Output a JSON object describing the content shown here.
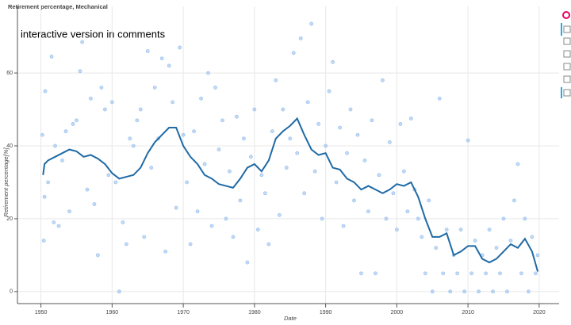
{
  "chart_data": {
    "type": "scatter",
    "title": "Retirement percentage, Mechanical",
    "annotation": "interactive version in comments",
    "x_label": "Date",
    "y_label": "Retirement percentage[%]",
    "xlim": [
      1946.7,
      2022.8
    ],
    "ylim": [
      -3.3,
      78.3
    ],
    "xticks": [
      1950,
      1960,
      1970,
      1980,
      1990,
      2000,
      2010,
      2020
    ],
    "yticks": [
      0,
      20,
      40,
      60
    ],
    "grid": true,
    "points": {
      "color": "#9ec3ee",
      "x": [
        1950.2,
        1950.4,
        1950.5,
        1950.6,
        1951,
        1951.5,
        1951.8,
        1952,
        1952.5,
        1953,
        1953.5,
        1954,
        1954.5,
        1955,
        1955.5,
        1955.8,
        1956.5,
        1957,
        1957.5,
        1958,
        1958.5,
        1959,
        1959.5,
        1960,
        1960.5,
        1961,
        1961.5,
        1962,
        1962.5,
        1963,
        1963.5,
        1964,
        1964.5,
        1965,
        1965.5,
        1966,
        1966.5,
        1967,
        1967.5,
        1968,
        1968.5,
        1969,
        1969.5,
        1970,
        1970.5,
        1971,
        1971.5,
        1972,
        1972.5,
        1973,
        1973.5,
        1974,
        1974.5,
        1975,
        1975.5,
        1976,
        1976.5,
        1977,
        1977.5,
        1978,
        1978.5,
        1979,
        1979.5,
        1980,
        1980.5,
        1981,
        1981.5,
        1982,
        1982.5,
        1983,
        1983.5,
        1984,
        1984.5,
        1985,
        1985.5,
        1986,
        1986.5,
        1987,
        1987.5,
        1988,
        1988.5,
        1989,
        1989.5,
        1990,
        1990.5,
        1991,
        1991.5,
        1992,
        1992.5,
        1993,
        1993.5,
        1994,
        1994.5,
        1995,
        1995.5,
        1996,
        1996.5,
        1997,
        1997.5,
        1998,
        1998.5,
        1999,
        1999.5,
        2000,
        2000.5,
        2001,
        2001.5,
        2002,
        2002.5,
        2003,
        2003.5,
        2004,
        2004.5,
        2005,
        2005.5,
        2006,
        2006.5,
        2007,
        2007.5,
        2008,
        2008.5,
        2009,
        2009.5,
        2010,
        2010.5,
        2011,
        2011.5,
        2012,
        2012.5,
        2013,
        2013.5,
        2014,
        2014.5,
        2015,
        2015.5,
        2016,
        2016.5,
        2017,
        2017.5,
        2018,
        2018.5,
        2019,
        2019.5,
        2019.8
      ],
      "y": [
        43,
        14,
        26,
        55,
        30,
        64.5,
        19,
        40,
        18,
        36,
        44,
        22,
        46,
        47,
        60.5,
        68.5,
        28,
        53,
        24,
        10,
        56,
        50,
        32,
        52,
        30,
        0,
        19,
        13,
        42,
        40,
        47,
        50,
        15,
        66,
        34,
        56,
        42,
        64,
        11,
        62,
        52,
        23,
        67,
        43,
        30,
        13,
        44,
        22,
        53,
        35,
        60,
        18,
        56,
        39,
        47,
        20,
        33,
        15,
        48,
        25,
        42,
        8,
        37,
        50,
        17,
        32,
        27,
        13,
        44,
        58,
        21,
        50,
        34,
        42,
        65.5,
        38,
        69.5,
        27,
        52,
        73.5,
        33,
        46,
        20,
        40,
        55,
        63,
        30,
        45,
        18,
        38,
        50,
        25,
        43,
        5,
        36,
        22,
        47,
        5,
        32,
        58,
        20,
        41,
        27,
        17,
        46,
        33,
        22,
        47.5,
        28,
        20,
        15,
        5,
        25,
        0,
        12,
        53,
        5,
        17,
        0,
        10,
        5,
        17,
        0,
        41.5,
        5,
        14,
        0,
        10,
        5,
        17,
        0,
        12,
        5,
        20,
        0,
        14,
        25,
        35,
        5,
        20,
        0,
        15,
        5,
        10
      ]
    },
    "line": {
      "color": "#1f6aa5",
      "x": [
        1950.3,
        1950.5,
        1951,
        1952,
        1953,
        1954,
        1955,
        1956,
        1957,
        1958,
        1959,
        1960,
        1961,
        1962,
        1963,
        1964,
        1965,
        1966,
        1967,
        1968,
        1969,
        1970,
        1971,
        1972,
        1973,
        1974,
        1975,
        1976,
        1977,
        1978,
        1979,
        1980,
        1981,
        1982,
        1983,
        1984,
        1985,
        1986,
        1987,
        1988,
        1989,
        1990,
        1991,
        1992,
        1993,
        1994,
        1995,
        1996,
        1997,
        1998,
        1999,
        2000,
        2001,
        2002,
        2003,
        2004,
        2005,
        2006,
        2007,
        2008,
        2009,
        2010,
        2011,
        2012,
        2013,
        2014,
        2015,
        2016,
        2017,
        2018,
        2019,
        2019.8
      ],
      "y": [
        32,
        35,
        36,
        37,
        38,
        39,
        38.5,
        37,
        37.5,
        36.5,
        35,
        32.5,
        31,
        31.5,
        32,
        34,
        38,
        41,
        43,
        45,
        45,
        40,
        37,
        35,
        32,
        31,
        29.5,
        29,
        28.5,
        31,
        34,
        35,
        33,
        36,
        42,
        44,
        45.5,
        47.5,
        43,
        39,
        37.5,
        38,
        34,
        33.5,
        31,
        30,
        28,
        29,
        28,
        27,
        28,
        29.5,
        29,
        30,
        26,
        20,
        15,
        15,
        16,
        10,
        11,
        12.5,
        12.5,
        9,
        8,
        9,
        11,
        13,
        12,
        14.5,
        11,
        5.5
      ]
    }
  }
}
